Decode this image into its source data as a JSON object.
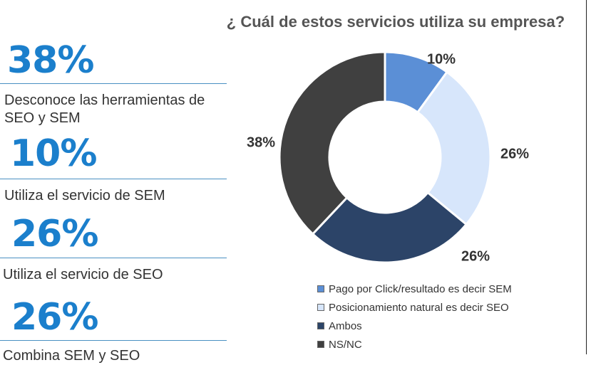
{
  "stats": [
    {
      "value": "38%",
      "label_lines": [
        "Desconoce las herramientas de",
        "SEO y SEM"
      ]
    },
    {
      "value": "10%",
      "label_lines": [
        "Utiliza el servicio de SEM"
      ]
    },
    {
      "value": "26%",
      "label_lines": [
        "Utiliza el servicio de SEO"
      ]
    },
    {
      "value": "26%",
      "label_lines": [
        "Combina SEM y SEO"
      ]
    }
  ],
  "chart_data": {
    "type": "pie",
    "title": "¿ Cuál de estos servicios utiliza su empresa?",
    "categories": [
      "Pago por Click/resultado es decir SEM",
      "Posicionamiento natural es decir SEO",
      "Ambos",
      "NS/NC"
    ],
    "values": [
      10,
      26,
      26,
      38
    ],
    "data_labels": [
      "10%",
      "26%",
      "26%",
      "38%"
    ],
    "colors": [
      "#5b8fd6",
      "#d7e6fb",
      "#2c4468",
      "#404040"
    ],
    "legend_position": "bottom"
  }
}
